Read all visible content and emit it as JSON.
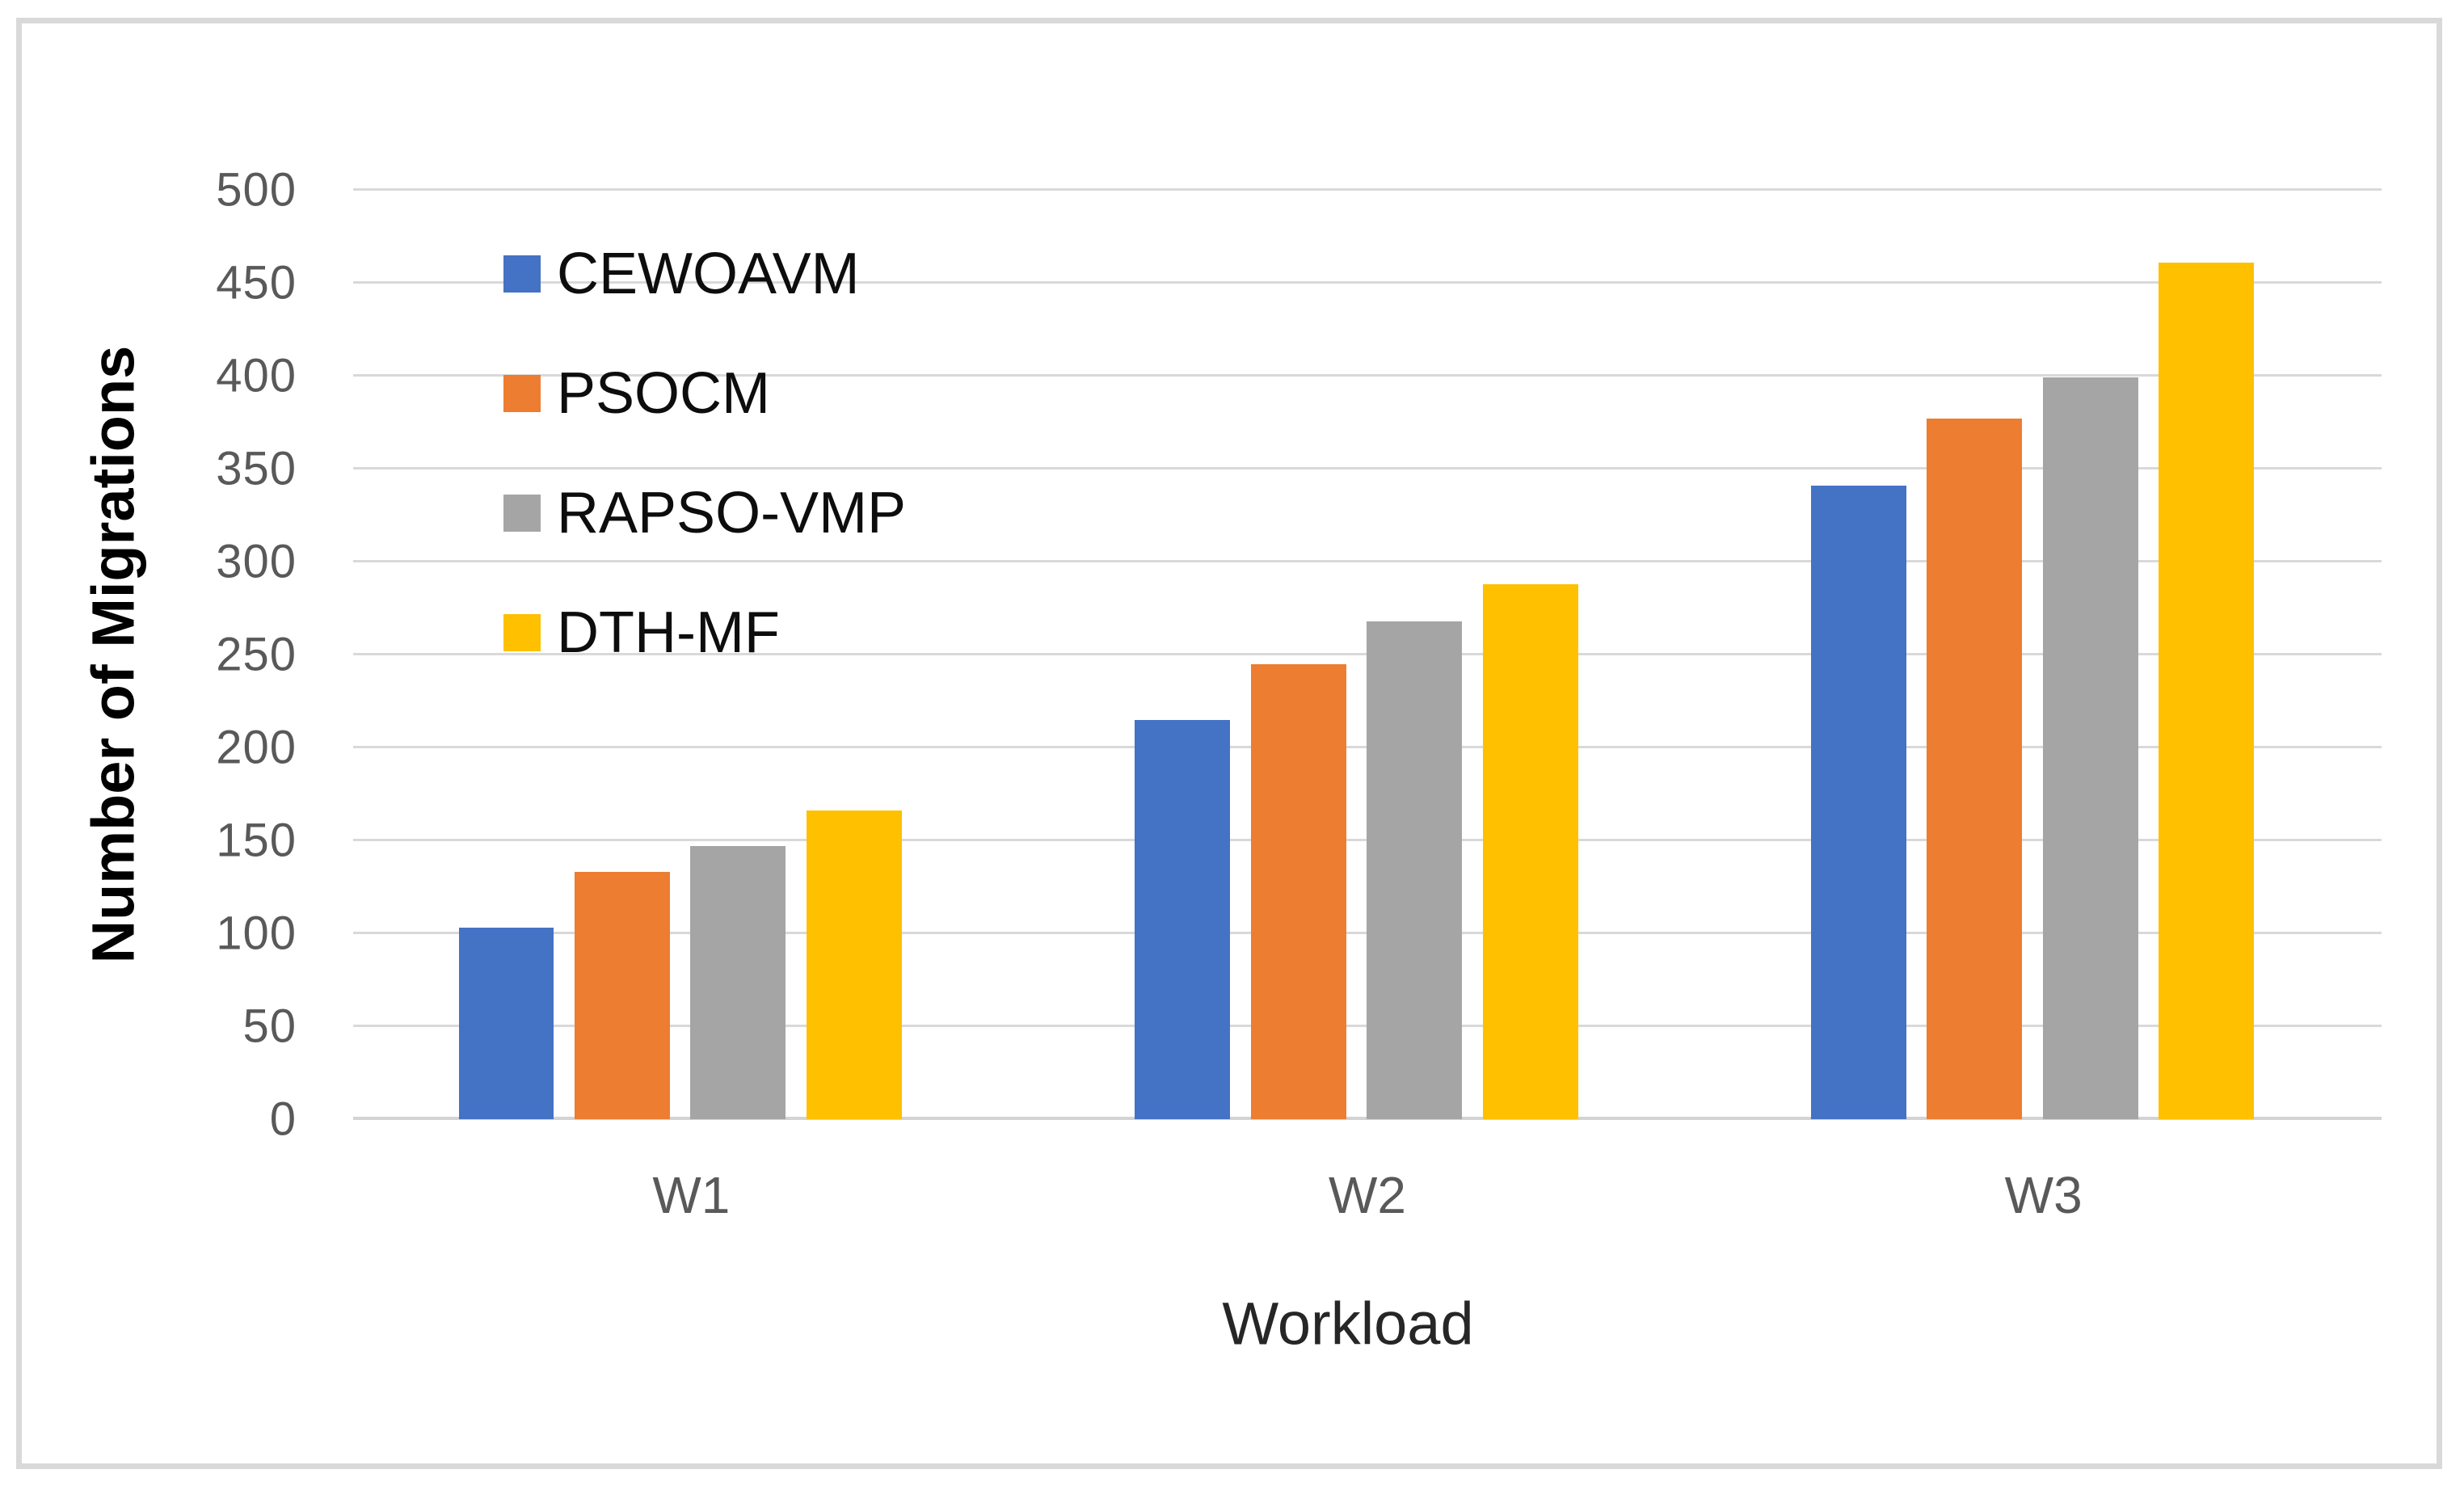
{
  "page": {
    "background": "#ffffff",
    "frame_color": "#d9d9d9"
  },
  "chart_data": {
    "type": "bar",
    "title": "",
    "categories": [
      "W1",
      "W2",
      "W3"
    ],
    "series": [
      {
        "name": "CEWOAVM",
        "color": "#4472C4",
        "values": [
          103,
          215,
          341
        ]
      },
      {
        "name": "PSOCM",
        "color": "#ED7D31",
        "values": [
          133,
          245,
          377
        ]
      },
      {
        "name": "RAPSO-VMP",
        "color": "#A5A5A5",
        "values": [
          147,
          268,
          399
        ]
      },
      {
        "name": "DTH-MF",
        "color": "#FFC000",
        "values": [
          166,
          288,
          461
        ]
      }
    ],
    "xlabel": "Workload",
    "ylabel": "Number of Migrations",
    "ylim": [
      0,
      500
    ],
    "yticks": [
      0,
      50,
      100,
      150,
      200,
      250,
      300,
      350,
      400,
      450,
      500
    ],
    "grid": true,
    "gridline_color": "#d9d9d9",
    "axis_line_color": "#d3d3d3",
    "tick_label_color": "#595959",
    "legend_position": "upper-left-inside",
    "legend_text_color": "#0d0d0d"
  }
}
